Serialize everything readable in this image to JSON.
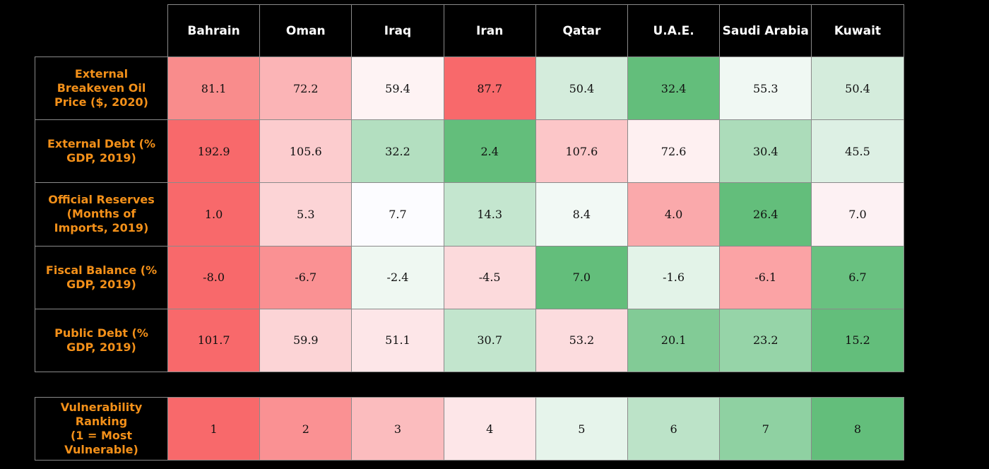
{
  "chart_data": {
    "type": "table",
    "columns": [
      "Bahrain",
      "Oman",
      "Iraq",
      "Iran",
      "Qatar",
      "U.A.E.",
      "Saudi Arabia",
      "Kuwait"
    ],
    "rows": [
      {
        "label": "External\nBreakeven Oil\nPrice ($, 2020)",
        "values": [
          "81.1",
          "72.2",
          "59.4",
          "87.7",
          "50.4",
          "32.4",
          "55.3",
          "50.4"
        ],
        "colors": [
          "#f98c8c",
          "#fbb4b6",
          "#fef3f4",
          "#f8696b",
          "#d4ecdc",
          "#63be7b",
          "#f0f8f3",
          "#d4ecdc"
        ]
      },
      {
        "label": "External Debt (%\nGDP, 2019)",
        "values": [
          "192.9",
          "105.6",
          "32.2",
          "2.4",
          "107.6",
          "72.6",
          "30.4",
          "45.5"
        ],
        "colors": [
          "#f8696b",
          "#fcccce",
          "#b3dfc0",
          "#63be7b",
          "#fcc6c8",
          "#fef0f1",
          "#acdcba",
          "#ddf0e4"
        ]
      },
      {
        "label": "Official Reserves\n(Months of\nImports, 2019)",
        "values": [
          "1.0",
          "5.3",
          "7.7",
          "14.3",
          "8.4",
          "4.0",
          "26.4",
          "7.0"
        ],
        "colors": [
          "#f8696b",
          "#fcd4d6",
          "#fcfcff",
          "#c4e6cf",
          "#f2f9f5",
          "#faa9ab",
          "#63be7b",
          "#fdf1f3"
        ]
      },
      {
        "label": "Fiscal Balance (%\nGDP, 2019)",
        "values": [
          "-8.0",
          "-6.7",
          "-2.4",
          "-4.5",
          "7.0",
          "-1.6",
          "-6.1",
          "6.7"
        ],
        "colors": [
          "#f8696b",
          "#fa9193",
          "#eff8f2",
          "#fcdadc",
          "#63be7b",
          "#e3f3e8",
          "#fba3a5",
          "#69c180"
        ]
      },
      {
        "label": "Public Debt (%\nGDP, 2019)",
        "values": [
          "101.7",
          "59.9",
          "51.1",
          "30.7",
          "53.2",
          "20.1",
          "23.2",
          "15.2"
        ],
        "colors": [
          "#f8696b",
          "#fcd4d6",
          "#fde6e8",
          "#c2e5cd",
          "#fcdcde",
          "#82cb96",
          "#96d4a8",
          "#63be7b"
        ]
      }
    ],
    "ranking": {
      "label": "Vulnerability\nRanking\n(1 = Most\nVulnerable)",
      "values": [
        "1",
        "2",
        "3",
        "4",
        "5",
        "6",
        "7",
        "8"
      ],
      "colors": [
        "#f8696b",
        "#fa9193",
        "#fbbcbe",
        "#fde6e8",
        "#e6f4eb",
        "#bce3c8",
        "#8fd1a2",
        "#63be7b"
      ]
    }
  }
}
